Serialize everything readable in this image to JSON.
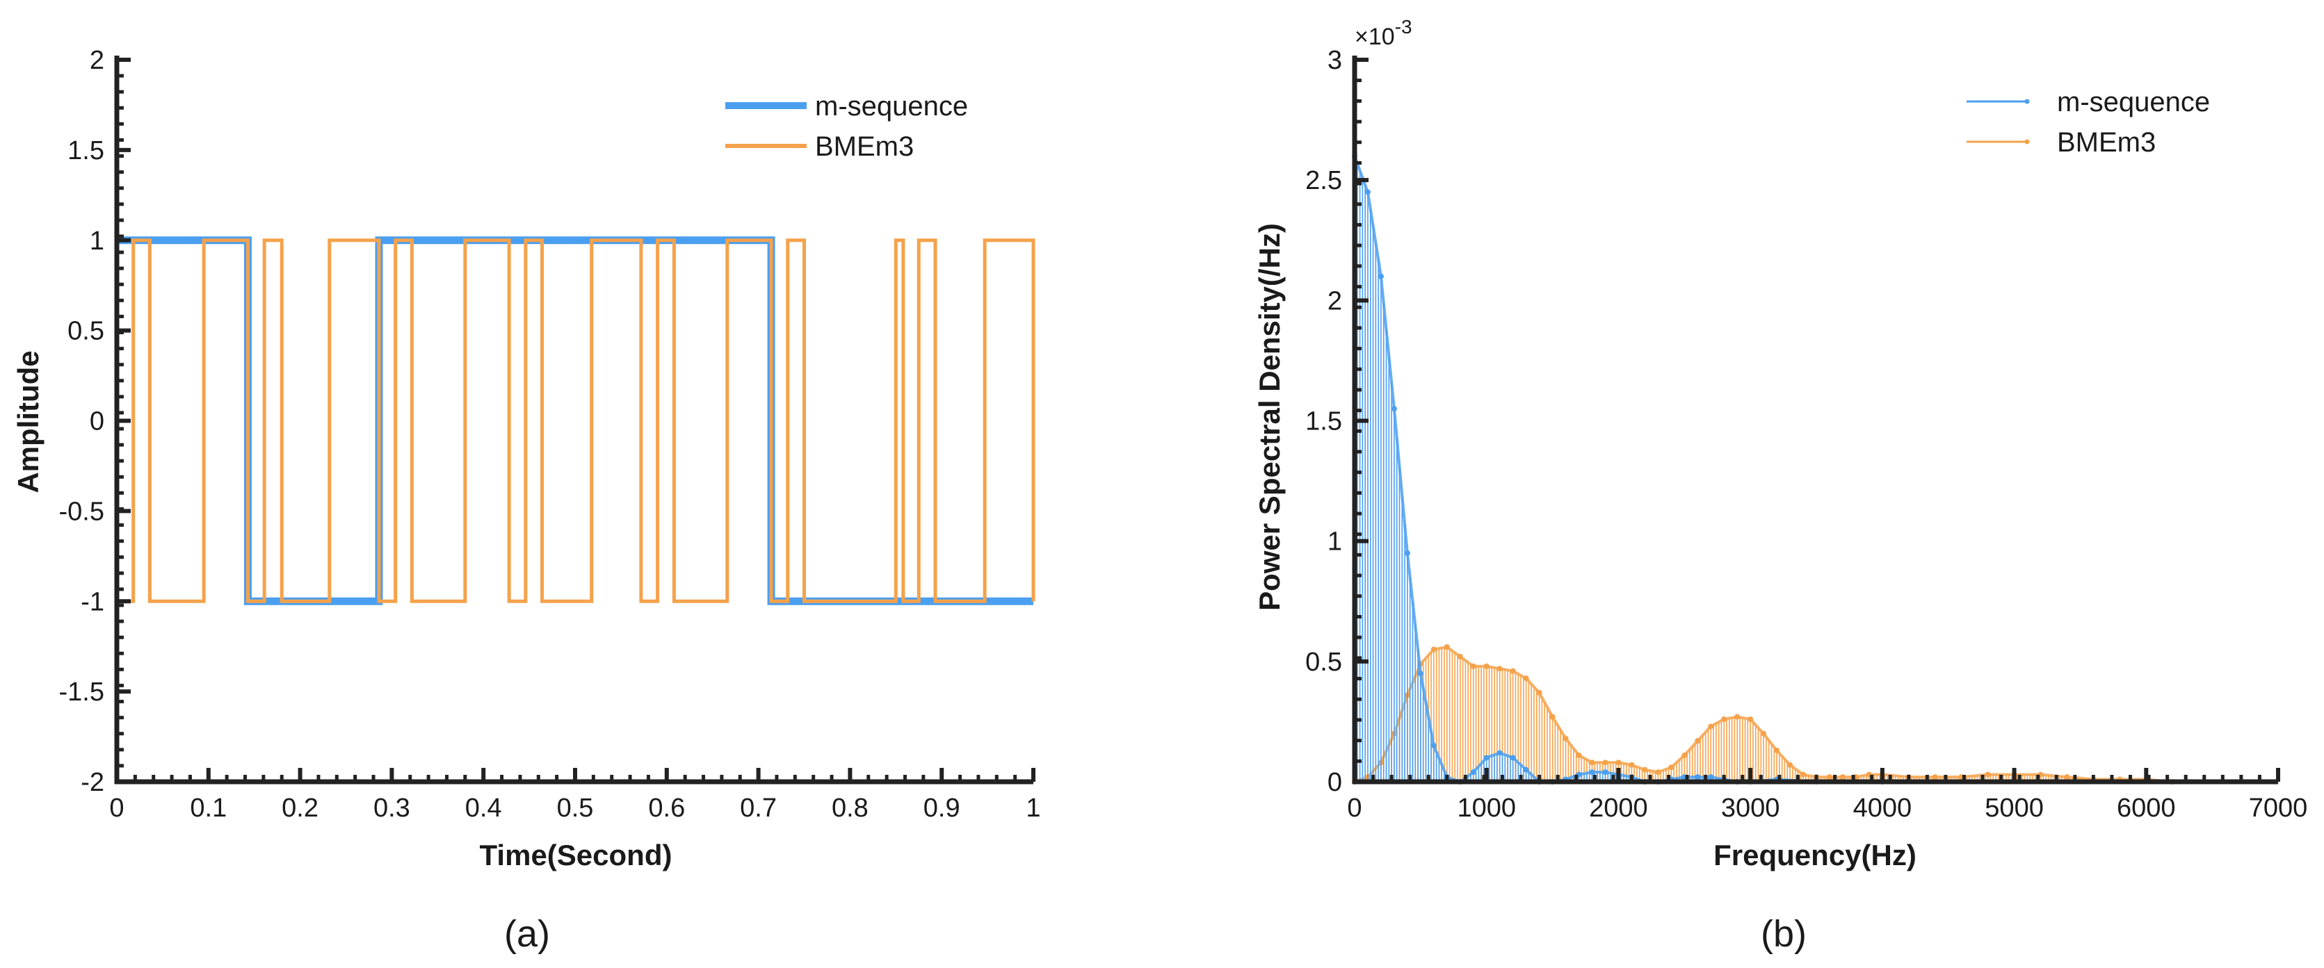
{
  "chart_data": [
    {
      "type": "line",
      "panel_label": "(a)",
      "title": "",
      "xlabel": "Time(Second)",
      "ylabel": "Amplitude",
      "xlim": [
        0,
        1
      ],
      "ylim": [
        -2,
        2
      ],
      "xticks": [
        0,
        0.1,
        0.2,
        0.3,
        0.4,
        0.5,
        0.6,
        0.7,
        0.8,
        0.9,
        1
      ],
      "xtick_labels": [
        "0",
        "0.1",
        "0.2",
        "0.3",
        "0.4",
        "0.5",
        "0.6",
        "0.7",
        "0.8",
        "0.9",
        "1"
      ],
      "yticks": [
        -2,
        -1.5,
        -1,
        -0.5,
        0,
        0.5,
        1,
        1.5,
        2
      ],
      "ytick_labels": [
        "-2",
        "-1.5",
        "-1",
        "-0.5",
        "0",
        "0.5",
        "1",
        "1.5",
        "2"
      ],
      "legend_position": "top-right",
      "series": [
        {
          "name": "m-sequence",
          "color": "#4b9ff0",
          "step": true,
          "x": [
            0,
            0.143,
            0.286,
            0.714,
            1
          ],
          "values": [
            1,
            -1,
            1,
            -1,
            -1
          ]
        },
        {
          "name": "BMEm3",
          "color": "#f5a24b",
          "step": true,
          "x": [
            0,
            0.018,
            0.036,
            0.095,
            0.143,
            0.161,
            0.18,
            0.232,
            0.286,
            0.304,
            0.322,
            0.38,
            0.428,
            0.446,
            0.464,
            0.518,
            0.572,
            0.59,
            0.608,
            0.666,
            0.714,
            0.732,
            0.75,
            0.85,
            0.858,
            0.875,
            0.893,
            0.947,
            1
          ],
          "values": [
            -1,
            1,
            -1,
            1,
            -1,
            1,
            -1,
            1,
            -1,
            1,
            -1,
            1,
            -1,
            1,
            -1,
            1,
            -1,
            1,
            -1,
            1,
            -1,
            1,
            -1,
            1,
            -1,
            1,
            -1,
            1,
            -1
          ]
        }
      ]
    },
    {
      "type": "stem",
      "panel_label": "(b)",
      "title": "",
      "xlabel": "Frequency(Hz)",
      "ylabel": "Power Spectral Density(/Hz)",
      "y_exponent_label": "×10",
      "y_exponent_power": "-3",
      "xlim": [
        0,
        7000
      ],
      "ylim": [
        0,
        3
      ],
      "xticks": [
        0,
        1000,
        2000,
        3000,
        4000,
        5000,
        6000,
        7000
      ],
      "xtick_labels": [
        "0",
        "1000",
        "2000",
        "3000",
        "4000",
        "5000",
        "6000",
        "7000"
      ],
      "yticks": [
        0,
        0.5,
        1,
        1.5,
        2,
        2.5,
        3
      ],
      "ytick_labels": [
        "0",
        "0.5",
        "1",
        "1.5",
        "2",
        "2.5",
        "3"
      ],
      "legend_position": "top-right",
      "series": [
        {
          "name": "m-sequence",
          "color": "#4b9ff0",
          "x": [
            0,
            100,
            200,
            300,
            400,
            500,
            600,
            700,
            800,
            900,
            1000,
            1100,
            1200,
            1300,
            1400,
            1500,
            1600,
            1700,
            1800,
            1900,
            2000,
            2100,
            2200,
            2300,
            2400,
            2500,
            2600,
            2700,
            2800,
            2900,
            3000,
            3200,
            3500,
            4000
          ],
          "values": [
            2.6,
            2.45,
            2.1,
            1.55,
            0.95,
            0.45,
            0.15,
            0.02,
            0.0,
            0.04,
            0.1,
            0.12,
            0.1,
            0.05,
            0.0,
            0.0,
            0.01,
            0.03,
            0.04,
            0.04,
            0.03,
            0.02,
            0.0,
            0.0,
            0.01,
            0.02,
            0.02,
            0.02,
            0.01,
            0.0,
            0.0,
            0.01,
            0.0,
            0.0
          ]
        },
        {
          "name": "BMEm3",
          "color": "#f5a24b",
          "x": [
            0,
            100,
            200,
            300,
            400,
            500,
            600,
            700,
            800,
            900,
            1000,
            1100,
            1200,
            1300,
            1400,
            1500,
            1600,
            1700,
            1800,
            1900,
            2000,
            2100,
            2200,
            2300,
            2400,
            2500,
            2600,
            2700,
            2800,
            2900,
            3000,
            3100,
            3200,
            3300,
            3400,
            3500,
            3600,
            3700,
            3800,
            3900,
            4000,
            4200,
            4400,
            4600,
            4800,
            5000,
            5200,
            5400,
            5600,
            5800,
            6000,
            6200
          ],
          "values": [
            0.0,
            0.02,
            0.08,
            0.2,
            0.36,
            0.49,
            0.55,
            0.56,
            0.52,
            0.48,
            0.48,
            0.47,
            0.46,
            0.43,
            0.37,
            0.27,
            0.18,
            0.11,
            0.08,
            0.08,
            0.08,
            0.07,
            0.05,
            0.04,
            0.06,
            0.11,
            0.17,
            0.23,
            0.26,
            0.27,
            0.26,
            0.2,
            0.13,
            0.07,
            0.03,
            0.02,
            0.02,
            0.02,
            0.02,
            0.03,
            0.03,
            0.02,
            0.02,
            0.02,
            0.03,
            0.03,
            0.03,
            0.02,
            0.01,
            0.01,
            0.01,
            0.0
          ]
        }
      ]
    }
  ]
}
